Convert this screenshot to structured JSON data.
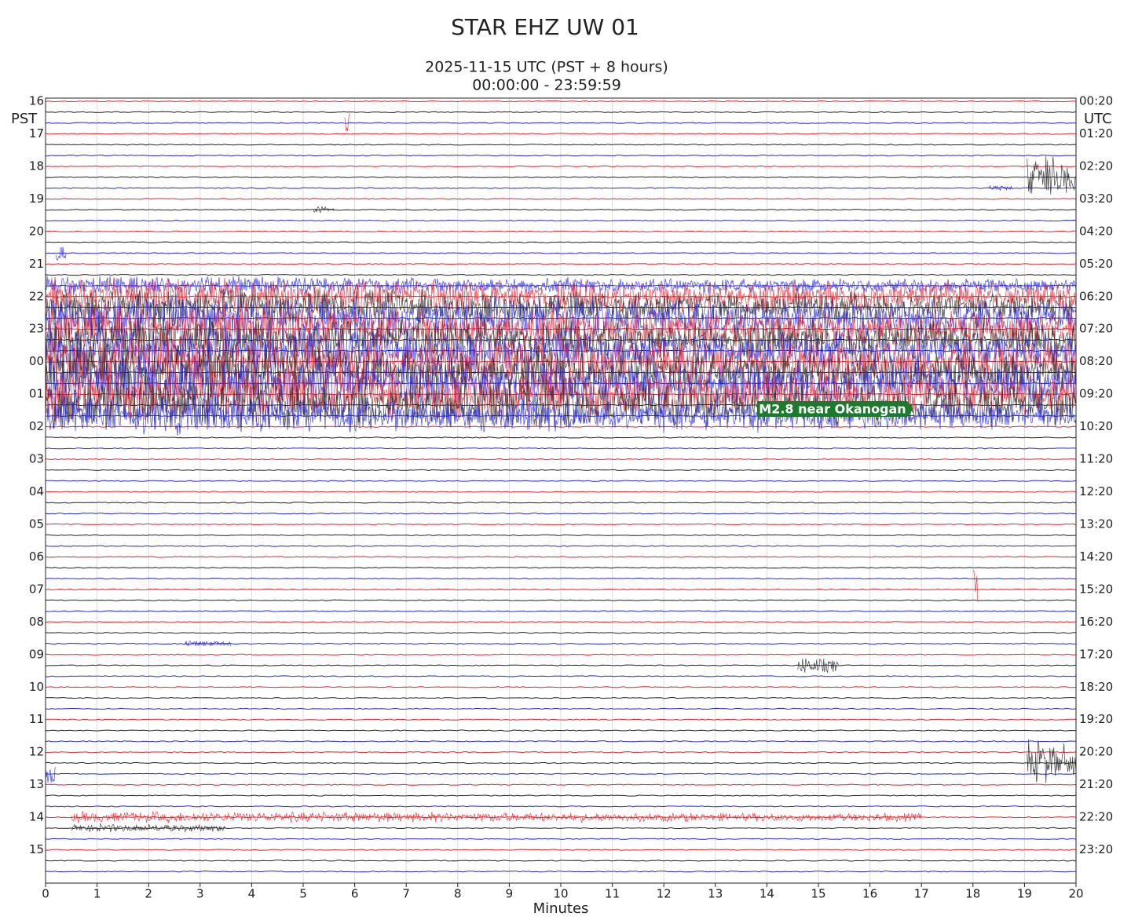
{
  "chart_data": {
    "type": "helicorder",
    "title": "STAR EHZ UW 01",
    "subtitle": [
      "2025-11-15 UTC (PST + 8 hours)",
      "00:00:00 - 23:59:59"
    ],
    "left_axis_label": "PST",
    "right_axis_label": "UTC",
    "x_label": "Minutes",
    "xlim": [
      0,
      20
    ],
    "xticks": [
      0,
      1,
      2,
      3,
      4,
      5,
      6,
      7,
      8,
      9,
      10,
      11,
      12,
      13,
      14,
      15,
      16,
      17,
      18,
      19,
      20
    ],
    "grid": true,
    "left_labels": [
      "16",
      "17",
      "18",
      "19",
      "20",
      "21",
      "22",
      "23",
      "00",
      "01",
      "02",
      "03",
      "04",
      "05",
      "06",
      "07",
      "08",
      "09",
      "10",
      "11",
      "12",
      "13",
      "14",
      "15"
    ],
    "right_labels": [
      "00:20",
      "01:20",
      "02:20",
      "03:20",
      "04:20",
      "05:20",
      "06:20",
      "07:20",
      "08:20",
      "09:20",
      "10:20",
      "11:20",
      "12:20",
      "13:20",
      "14:20",
      "15:20",
      "16:20",
      "17:20",
      "18:20",
      "19:20",
      "20:20",
      "21:20",
      "22:20",
      "23:20"
    ],
    "trace_colors": [
      "#e8202a",
      "#222222",
      "#2424e6"
    ],
    "annotation": "M2.8 near Okanogan",
    "bursts": [
      {
        "row": 3,
        "start": 5.8,
        "end": 5.9,
        "amplitude": 3
      },
      {
        "row": 7,
        "start": 19.05,
        "end": 20,
        "amplitude": 2.5
      },
      {
        "row": 8,
        "start": 18.3,
        "end": 18.8,
        "amplitude": 0.3
      },
      {
        "row": 10,
        "start": 5.2,
        "end": 5.6,
        "amplitude": 0.4
      },
      {
        "row": 14,
        "start": 0.2,
        "end": 0.4,
        "amplitude": 0.8
      },
      {
        "row": 17,
        "start": 0,
        "end": 20,
        "amplitude": 1
      },
      {
        "row": 18,
        "start": 0,
        "end": 20,
        "amplitude": 2
      },
      {
        "row": 19,
        "start": 0,
        "end": 20,
        "amplitude": 2
      },
      {
        "row": 20,
        "start": 0,
        "end": 20,
        "amplitude": 2.5
      },
      {
        "row": 21,
        "start": 0,
        "end": 20,
        "amplitude": 2.5
      },
      {
        "row": 22,
        "start": 0,
        "end": 20,
        "amplitude": 2.5
      },
      {
        "row": 23,
        "start": 0,
        "end": 20,
        "amplitude": 2.5
      },
      {
        "row": 24,
        "start": 0,
        "end": 20,
        "amplitude": 3
      },
      {
        "row": 25,
        "start": 0,
        "end": 20,
        "amplitude": 3
      },
      {
        "row": 26,
        "start": 0,
        "end": 20,
        "amplitude": 3
      },
      {
        "row": 27,
        "start": 0,
        "end": 20,
        "amplitude": 3
      },
      {
        "row": 28,
        "start": 0,
        "end": 20,
        "amplitude": 3
      },
      {
        "row": 29,
        "start": 0,
        "end": 20,
        "amplitude": 2
      },
      {
        "row": 45,
        "start": 18,
        "end": 18.1,
        "amplitude": 3
      },
      {
        "row": 50,
        "start": 2.7,
        "end": 3.6,
        "amplitude": 0.4
      },
      {
        "row": 52,
        "start": 14.6,
        "end": 15.4,
        "amplitude": 1
      },
      {
        "row": 61,
        "start": 19.05,
        "end": 20,
        "amplitude": 2.5
      },
      {
        "row": 62,
        "start": 0,
        "end": 0.2,
        "amplitude": 1
      },
      {
        "row": 66,
        "start": 0.5,
        "end": 17,
        "amplitude": 0.6
      },
      {
        "row": 67,
        "start": 0.5,
        "end": 3.5,
        "amplitude": 0.5
      }
    ]
  }
}
